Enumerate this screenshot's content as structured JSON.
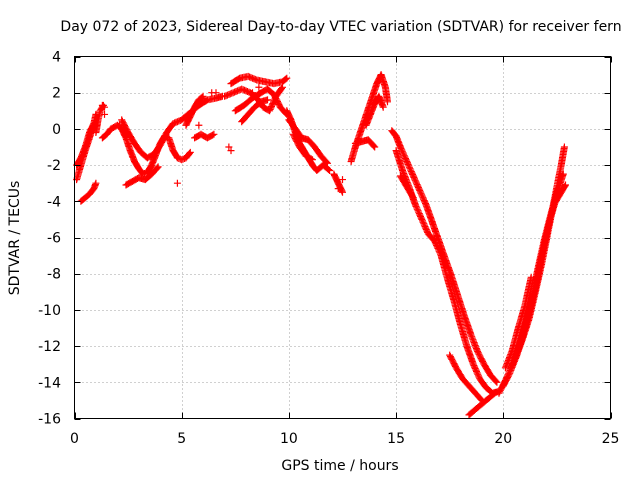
{
  "chart_data": {
    "type": "scatter",
    "title": "Day 072 of 2023, Sidereal Day-to-day VTEC variation (SDTVAR) for receiver fern",
    "xlabel": "GPS time / hours",
    "ylabel": "SDTVAR / TECUs",
    "xlim": [
      0,
      25
    ],
    "ylim": [
      -16,
      4
    ],
    "xticks": [
      0,
      5,
      10,
      15,
      20,
      25
    ],
    "yticks": [
      -16,
      -14,
      -12,
      -10,
      -8,
      -6,
      -4,
      -2,
      0,
      2,
      4
    ],
    "grid": true,
    "marker": "+",
    "color": "#ff0000",
    "series": [
      {
        "name": "SDTVAR",
        "segments": [
          [
            [
              0.1,
              -2.8
            ],
            [
              0.3,
              -2.0
            ],
            [
              0.5,
              -1.2
            ],
            [
              0.7,
              -0.5
            ],
            [
              0.9,
              0.3
            ],
            [
              1.0,
              0.8
            ]
          ],
          [
            [
              0.1,
              -2.0
            ],
            [
              0.3,
              -1.6
            ],
            [
              0.5,
              -1.0
            ],
            [
              0.7,
              -0.2
            ],
            [
              0.9,
              0.3
            ]
          ],
          [
            [
              0.3,
              -4.0
            ],
            [
              0.5,
              -3.8
            ],
            [
              0.7,
              -3.6
            ],
            [
              0.9,
              -3.3
            ],
            [
              1.0,
              -3.0
            ]
          ],
          [
            [
              1.0,
              -0.2
            ],
            [
              1.1,
              0.5
            ],
            [
              1.2,
              1.0
            ],
            [
              1.35,
              1.3
            ]
          ],
          [
            [
              1.3,
              -0.5
            ],
            [
              1.5,
              -0.3
            ],
            [
              1.7,
              0.0
            ],
            [
              2.0,
              0.2
            ],
            [
              2.2,
              0.0
            ],
            [
              2.4,
              -0.5
            ],
            [
              2.6,
              -1.2
            ],
            [
              2.8,
              -1.8
            ],
            [
              3.0,
              -2.2
            ],
            [
              3.2,
              -2.5
            ],
            [
              3.4,
              -2.4
            ],
            [
              3.6,
              -2.0
            ],
            [
              3.8,
              -1.4
            ],
            [
              4.0,
              -0.8
            ],
            [
              4.2,
              -0.4
            ],
            [
              4.4,
              -0.5
            ],
            [
              4.6,
              -1.2
            ],
            [
              4.8,
              -1.6
            ],
            [
              5.0,
              -1.7
            ],
            [
              5.2,
              -1.6
            ],
            [
              5.4,
              -1.3
            ]
          ],
          [
            [
              2.2,
              0.5
            ],
            [
              2.5,
              -0.2
            ],
            [
              2.8,
              -0.8
            ],
            [
              3.1,
              -1.3
            ],
            [
              3.4,
              -1.6
            ],
            [
              3.7,
              -1.4
            ],
            [
              4.0,
              -0.9
            ],
            [
              4.3,
              -0.2
            ],
            [
              4.6,
              0.3
            ],
            [
              5.0,
              0.5
            ],
            [
              5.4,
              0.9
            ],
            [
              5.8,
              1.3
            ],
            [
              6.2,
              1.6
            ],
            [
              6.6,
              1.7
            ],
            [
              6.9,
              1.8
            ]
          ],
          [
            [
              2.4,
              -3.1
            ],
            [
              2.7,
              -2.9
            ],
            [
              3.0,
              -2.7
            ],
            [
              3.3,
              -2.8
            ],
            [
              3.6,
              -2.5
            ],
            [
              3.9,
              -2.1
            ]
          ],
          [
            [
              5.2,
              0.2
            ],
            [
              5.4,
              0.7
            ],
            [
              5.6,
              1.2
            ],
            [
              5.8,
              1.6
            ],
            [
              6.0,
              1.8
            ]
          ],
          [
            [
              5.6,
              -0.5
            ],
            [
              5.9,
              -0.3
            ],
            [
              6.2,
              -0.5
            ],
            [
              6.5,
              -0.3
            ]
          ],
          [
            [
              7.3,
              2.5
            ],
            [
              7.7,
              2.8
            ],
            [
              8.1,
              2.9
            ],
            [
              8.5,
              2.7
            ],
            [
              8.9,
              2.6
            ],
            [
              9.3,
              2.5
            ],
            [
              9.7,
              2.6
            ],
            [
              9.9,
              2.8
            ]
          ],
          [
            [
              7.0,
              1.8
            ],
            [
              7.4,
              2.0
            ],
            [
              7.8,
              2.2
            ],
            [
              8.2,
              2.0
            ],
            [
              8.5,
              1.7
            ],
            [
              8.8,
              1.2
            ],
            [
              9.1,
              1.0
            ],
            [
              9.4,
              1.8
            ],
            [
              9.7,
              2.3
            ]
          ],
          [
            [
              7.5,
              1.0
            ],
            [
              7.9,
              1.3
            ],
            [
              8.3,
              1.7
            ],
            [
              8.7,
              2.0
            ],
            [
              9.0,
              2.2
            ],
            [
              9.3,
              1.9
            ],
            [
              9.6,
              1.2
            ],
            [
              9.9,
              0.8
            ]
          ],
          [
            [
              7.8,
              0.4
            ],
            [
              8.1,
              0.8
            ],
            [
              8.4,
              1.2
            ],
            [
              8.7,
              1.5
            ],
            [
              9.0,
              1.6
            ]
          ],
          [
            [
              9.9,
              1.0
            ],
            [
              10.1,
              0.5
            ],
            [
              10.3,
              -0.2
            ],
            [
              10.5,
              -0.8
            ],
            [
              10.7,
              -1.2
            ],
            [
              10.9,
              -1.6
            ],
            [
              11.1,
              -2.0
            ],
            [
              11.3,
              -2.3
            ],
            [
              11.6,
              -2.0
            ],
            [
              11.9,
              -2.3
            ]
          ],
          [
            [
              10.0,
              0.5
            ],
            [
              10.3,
              0.0
            ],
            [
              10.6,
              -0.5
            ],
            [
              10.9,
              -0.6
            ],
            [
              11.2,
              -1.0
            ],
            [
              11.5,
              -1.5
            ],
            [
              11.8,
              -1.9
            ]
          ],
          [
            [
              10.2,
              -0.3
            ],
            [
              10.5,
              -1.0
            ],
            [
              10.8,
              -1.5
            ],
            [
              11.1,
              -1.7
            ]
          ],
          [
            [
              12.1,
              -2.5
            ],
            [
              12.3,
              -3.0
            ],
            [
              12.5,
              -3.5
            ]
          ],
          [
            [
              12.9,
              -1.8
            ],
            [
              13.1,
              -1.0
            ],
            [
              13.3,
              -0.3
            ],
            [
              13.5,
              0.4
            ],
            [
              13.7,
              1.1
            ],
            [
              13.9,
              1.8
            ],
            [
              14.1,
              2.5
            ],
            [
              14.3,
              3.0
            ],
            [
              14.5,
              2.3
            ],
            [
              14.6,
              1.5
            ]
          ],
          [
            [
              13.6,
              0.2
            ],
            [
              13.8,
              0.8
            ],
            [
              14.0,
              1.4
            ],
            [
              14.2,
              1.8
            ],
            [
              14.4,
              1.2
            ]
          ],
          [
            [
              13.1,
              -0.8
            ],
            [
              13.4,
              -0.7
            ],
            [
              13.7,
              -0.6
            ],
            [
              14.0,
              -1.0
            ]
          ],
          [
            [
              14.8,
              -0.1
            ],
            [
              15.0,
              -0.4
            ],
            [
              15.2,
              -1.0
            ],
            [
              15.5,
              -1.8
            ],
            [
              15.8,
              -2.6
            ],
            [
              16.1,
              -3.4
            ],
            [
              16.4,
              -4.2
            ],
            [
              16.7,
              -5.2
            ],
            [
              17.0,
              -6.2
            ],
            [
              17.3,
              -7.2
            ],
            [
              17.6,
              -8.2
            ],
            [
              17.9,
              -9.3
            ],
            [
              18.2,
              -10.4
            ],
            [
              18.5,
              -11.4
            ],
            [
              18.8,
              -12.3
            ],
            [
              19.1,
              -13.0
            ],
            [
              19.4,
              -13.6
            ],
            [
              19.7,
              -14.0
            ]
          ],
          [
            [
              15.0,
              -1.2
            ],
            [
              15.3,
              -2.3
            ],
            [
              15.6,
              -3.2
            ],
            [
              15.9,
              -4.2
            ],
            [
              16.2,
              -5.0
            ],
            [
              16.5,
              -5.8
            ],
            [
              16.8,
              -6.2
            ],
            [
              17.1,
              -7.0
            ],
            [
              17.4,
              -8.3
            ],
            [
              17.7,
              -9.5
            ],
            [
              18.0,
              -10.8
            ],
            [
              18.3,
              -12.0
            ],
            [
              18.6,
              -13.0
            ],
            [
              18.9,
              -13.8
            ],
            [
              19.2,
              -14.3
            ],
            [
              19.5,
              -14.6
            ],
            [
              19.8,
              -14.5
            ]
          ],
          [
            [
              15.2,
              -2.6
            ],
            [
              15.5,
              -3.2
            ],
            [
              15.8,
              -3.8
            ]
          ],
          [
            [
              17.5,
              -12.5
            ],
            [
              17.8,
              -13.2
            ],
            [
              18.1,
              -13.8
            ],
            [
              18.4,
              -14.2
            ],
            [
              18.7,
              -14.6
            ],
            [
              19.0,
              -15.0
            ]
          ],
          [
            [
              18.4,
              -15.8
            ],
            [
              18.7,
              -15.5
            ],
            [
              19.0,
              -15.2
            ],
            [
              19.3,
              -14.9
            ],
            [
              19.6,
              -14.6
            ]
          ],
          [
            [
              19.8,
              -14.6
            ],
            [
              20.1,
              -13.9
            ],
            [
              20.4,
              -13.1
            ],
            [
              20.7,
              -12.1
            ],
            [
              21.0,
              -10.9
            ],
            [
              21.3,
              -9.4
            ],
            [
              21.6,
              -7.8
            ],
            [
              21.9,
              -6.2
            ],
            [
              22.2,
              -4.8
            ],
            [
              22.5,
              -3.5
            ],
            [
              22.8,
              -2.5
            ]
          ],
          [
            [
              20.0,
              -14.2
            ],
            [
              20.3,
              -13.5
            ],
            [
              20.6,
              -12.6
            ],
            [
              20.9,
              -11.6
            ],
            [
              21.2,
              -10.5
            ],
            [
              21.5,
              -9.0
            ],
            [
              21.8,
              -7.4
            ],
            [
              22.1,
              -5.6
            ],
            [
              22.4,
              -3.8
            ],
            [
              22.7,
              -2.0
            ],
            [
              22.85,
              -1.0
            ]
          ],
          [
            [
              20.1,
              -13.2
            ],
            [
              20.4,
              -12.3
            ],
            [
              20.7,
              -11.0
            ],
            [
              21.0,
              -9.8
            ],
            [
              21.3,
              -8.2
            ]
          ],
          [
            [
              20.6,
              -12.6
            ],
            [
              20.9,
              -11.5
            ],
            [
              21.2,
              -10.2
            ],
            [
              21.5,
              -8.8
            ],
            [
              21.8,
              -7.0
            ],
            [
              22.1,
              -5.4
            ],
            [
              22.4,
              -4.1
            ],
            [
              22.7,
              -3.5
            ],
            [
              22.9,
              -3.1
            ]
          ]
        ],
        "points": [
          [
            1.3,
            1.3
          ],
          [
            1.4,
            1.2
          ],
          [
            1.4,
            0.8
          ],
          [
            2.1,
            0.2
          ],
          [
            4.8,
            -3.0
          ],
          [
            5.1,
            0.6
          ],
          [
            5.3,
            0.7
          ],
          [
            5.8,
            0.2
          ],
          [
            6.4,
            2.0
          ],
          [
            6.6,
            2.0
          ],
          [
            7.2,
            -1.0
          ],
          [
            7.3,
            -1.2
          ],
          [
            8.3,
            2.0
          ],
          [
            8.6,
            2.3
          ],
          [
            12.3,
            -3.3
          ],
          [
            12.5,
            -2.8
          ]
        ]
      }
    ]
  }
}
